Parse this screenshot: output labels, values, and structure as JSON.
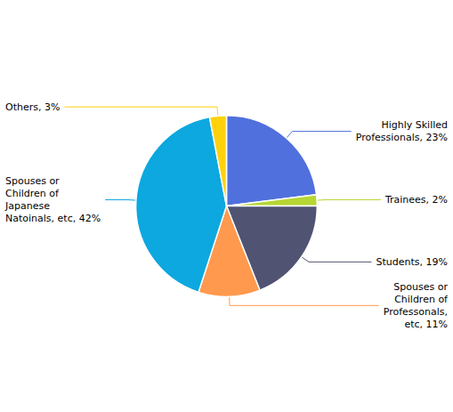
{
  "chart_data": {
    "type": "pie",
    "categories": [
      "Highly Skilled\nProfessionals, 23%",
      "Trainees, 2%",
      "Students, 19%",
      "Spouses or\nChildren of\nProfessonals,\netc, 11%",
      "Spouses or\nChildren of\nJapanese\nNatoinals, etc, 42%",
      "Others, 3%"
    ],
    "values": [
      23,
      2,
      19,
      11,
      42,
      3
    ],
    "legend": false
  }
}
